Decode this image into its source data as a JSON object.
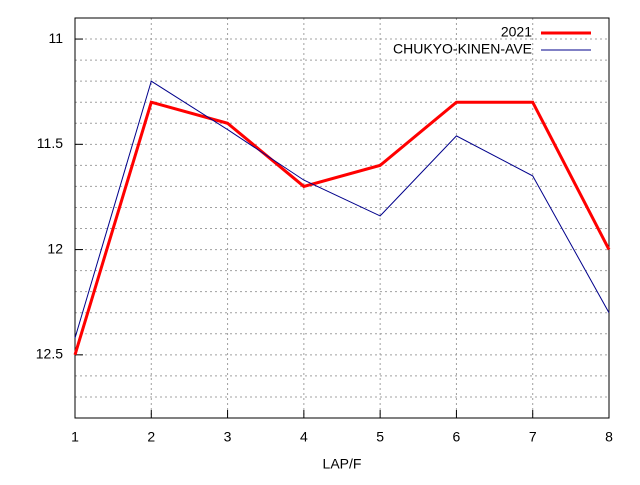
{
  "chart_data": {
    "type": "line",
    "xlabel": "LAP/F",
    "x": [
      1,
      2,
      3,
      4,
      5,
      6,
      7,
      8
    ],
    "series": [
      {
        "name": "2021",
        "color": "#ff0000",
        "width": 3,
        "values": [
          12.5,
          11.3,
          11.4,
          11.7,
          11.6,
          11.3,
          11.3,
          12.0
        ]
      },
      {
        "name": "CHUKYO-KINEN-AVE",
        "color": "#00008b",
        "width": 1,
        "values": [
          12.42,
          11.2,
          11.43,
          11.67,
          11.84,
          11.46,
          11.65,
          12.3
        ]
      }
    ],
    "xlim": [
      1,
      8
    ],
    "xticks": [
      1,
      2,
      3,
      4,
      5,
      6,
      7,
      8
    ],
    "ylim": [
      12.8,
      10.9
    ],
    "yticks": [
      11,
      11.5,
      12,
      12.5
    ],
    "minor_yticks": [
      11.1,
      11.2,
      11.3,
      11.4,
      11.6,
      11.7,
      11.8,
      11.9,
      12.1,
      12.2,
      12.3,
      12.4,
      12.6,
      12.7
    ],
    "grid": true,
    "legend": "top-right"
  }
}
